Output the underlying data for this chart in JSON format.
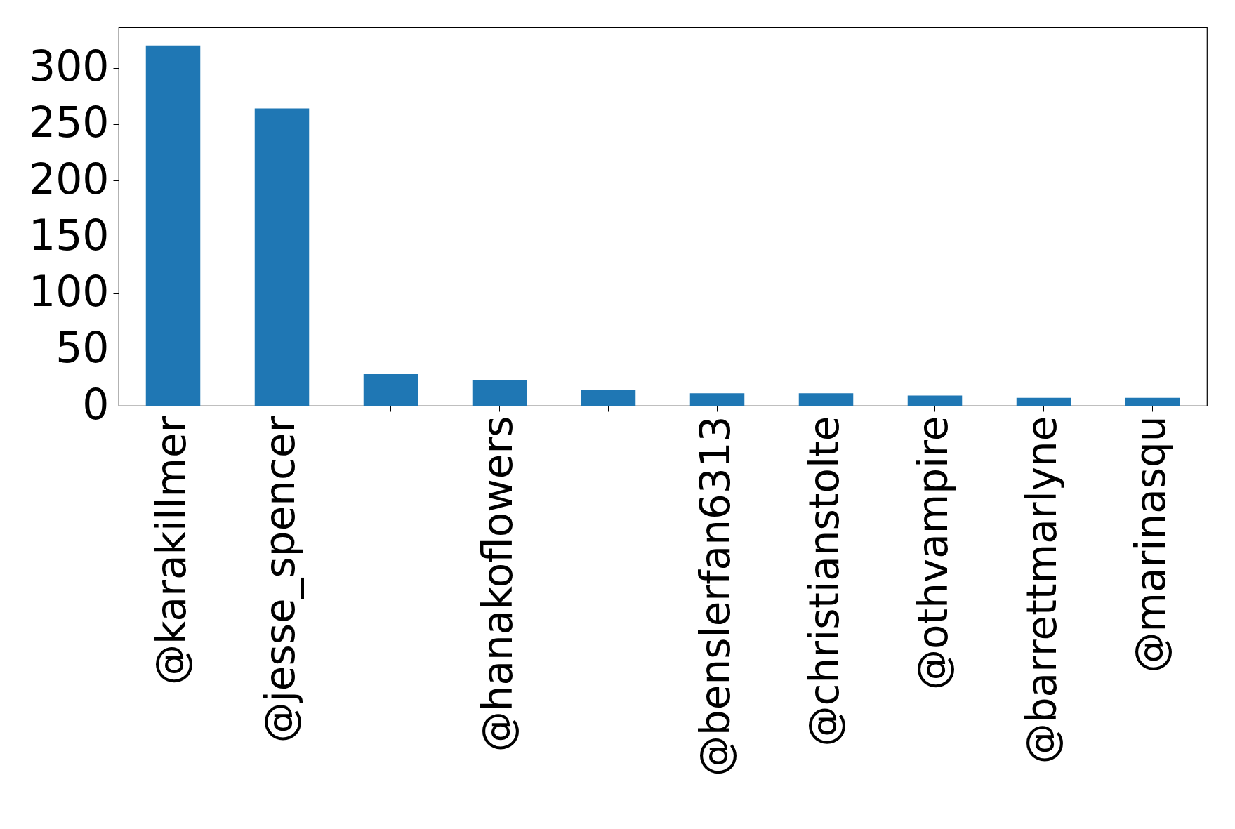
{
  "chart_data": {
    "type": "bar",
    "categories": [
      "@karakillmer",
      "@jesse_spencer",
      null,
      "@hanakoflowers",
      null,
      "@benslerfan6313",
      "@christianstolte",
      "@othvampire",
      "@barrettmarlyne",
      "@marinasqu"
    ],
    "values": [
      320,
      264,
      28,
      23,
      14,
      11,
      11,
      9,
      7,
      7
    ],
    "color": "#1f77b4",
    "ylim": [
      0,
      336
    ],
    "yticks": [
      0,
      50,
      100,
      150,
      200,
      250,
      300
    ],
    "grid": false
  }
}
